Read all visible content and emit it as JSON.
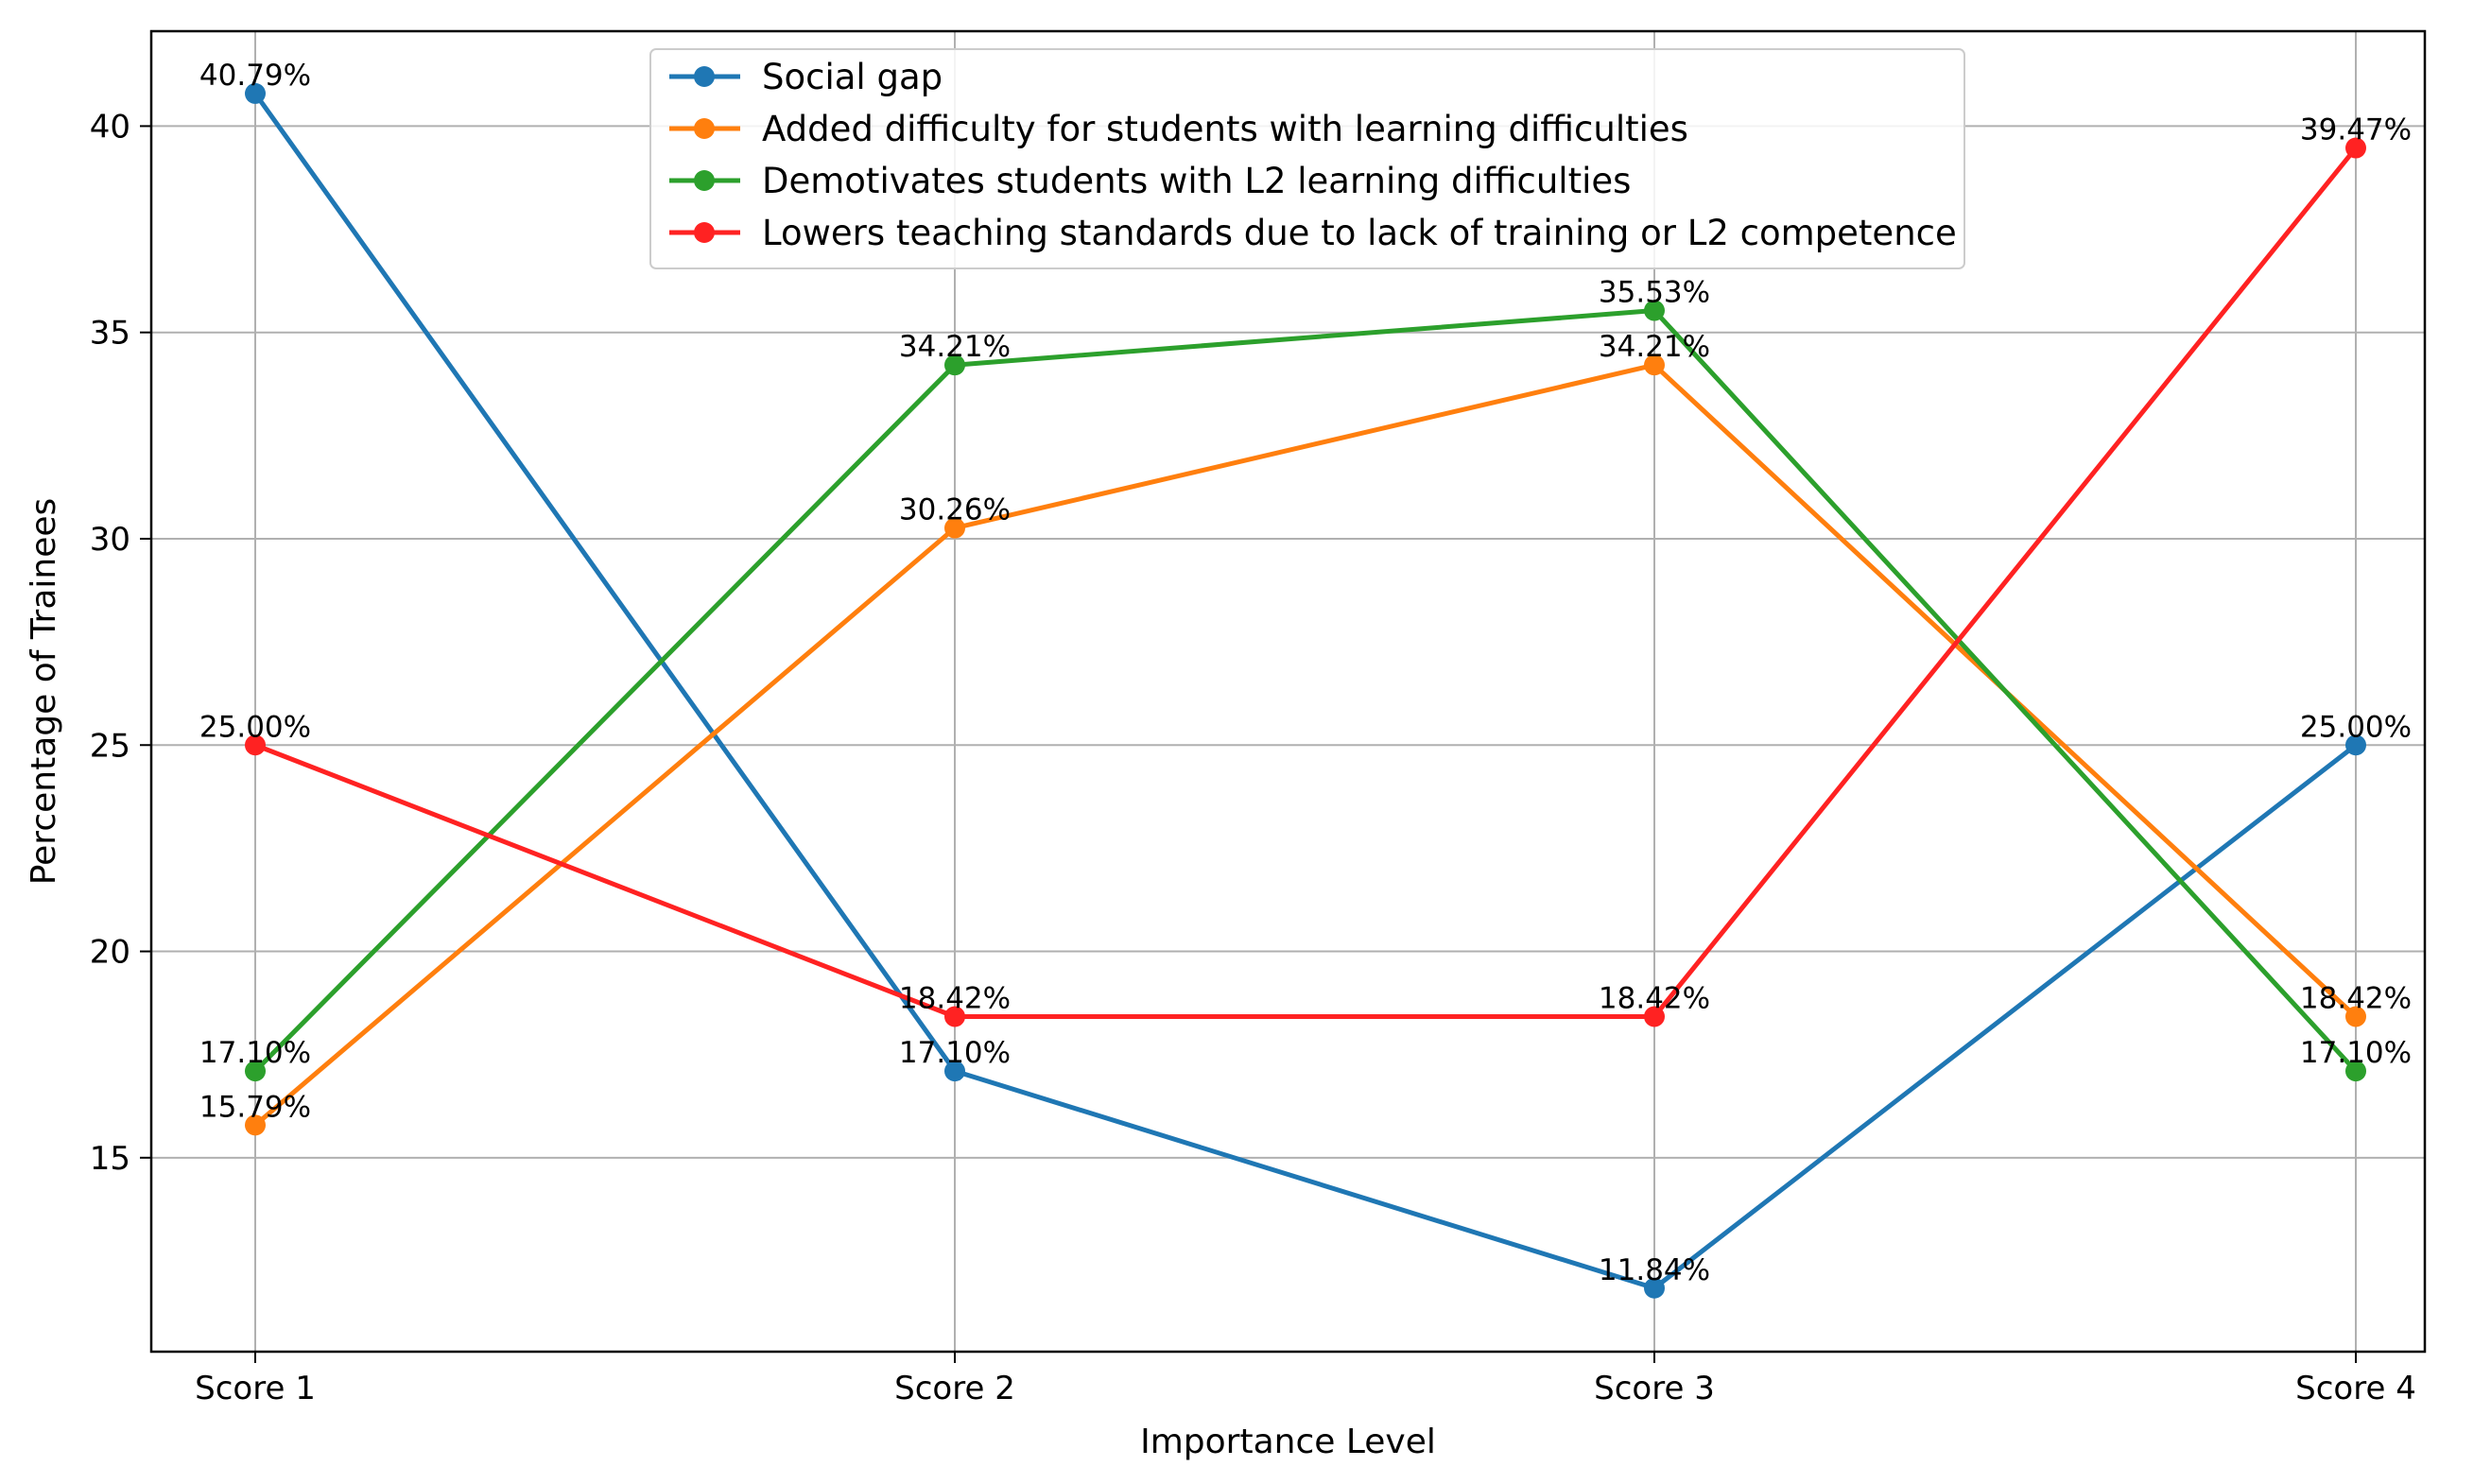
{
  "chart_data": {
    "type": "line",
    "title": "",
    "xlabel": "Importance Level",
    "ylabel": "Percentage of Trainees",
    "categories": [
      "Score 1",
      "Score 2",
      "Score 3",
      "Score 4"
    ],
    "ylim": [
      10.3,
      42.3
    ],
    "yticks": [
      15,
      20,
      25,
      30,
      35,
      40
    ],
    "grid": true,
    "legend_position": "top-center",
    "series": [
      {
        "name": "Social gap",
        "color": "#1f77b4",
        "values": [
          40.79,
          17.1,
          11.84,
          25.0
        ],
        "labels": [
          "40.79%",
          "17.10%",
          "11.84%",
          "25.00%"
        ]
      },
      {
        "name": "Added difficulty for students with learning difficulties",
        "color": "#ff7f0e",
        "values": [
          15.79,
          30.26,
          34.21,
          18.42
        ],
        "labels": [
          "15.79%",
          "30.26%",
          "34.21%",
          "18.42%"
        ]
      },
      {
        "name": "Demotivates students with L2 learning difficulties",
        "color": "#2ca02c",
        "values": [
          17.1,
          34.21,
          35.53,
          17.1
        ],
        "labels": [
          "17.10%",
          "34.21%",
          "35.53%",
          "17.10%"
        ]
      },
      {
        "name": "Lowers teaching standards due to lack of training or L2 competence",
        "color": "#ff2222",
        "values": [
          25.0,
          18.42,
          18.42,
          39.47
        ],
        "labels": [
          "25.00%",
          "18.42%",
          "18.42%",
          "39.47%"
        ]
      }
    ]
  }
}
